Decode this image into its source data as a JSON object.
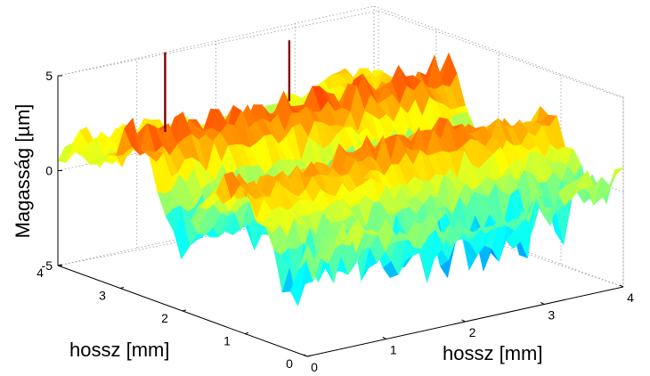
{
  "chart_data": {
    "type": "surface3d",
    "title": "",
    "xlabel": "hossz [mm]",
    "ylabel": "hossz [mm]",
    "zlabel": "Magasság [µm]",
    "xlim": [
      0,
      4
    ],
    "ylim": [
      0,
      4
    ],
    "zlim": [
      -5,
      5
    ],
    "x_ticks": [
      "0",
      "1",
      "2",
      "3",
      "4"
    ],
    "y_ticks": [
      "0",
      "1",
      "2",
      "3",
      "4"
    ],
    "z_ticks": [
      "5",
      "0",
      "-5"
    ],
    "colormap": "jet",
    "grid": true,
    "surface_description": {
      "base_level_um": 1.0,
      "ridges": [
        {
          "along": "x",
          "y_center_mm": 2.8,
          "height_um": 2.6,
          "peak_spacing_mm": 0.16
        },
        {
          "along": "x",
          "y_center_mm": 1.25,
          "height_um": 2.0,
          "peak_spacing_mm": 0.16
        }
      ],
      "valleys_min_um": -5,
      "spikes": [
        {
          "x_mm": 0.45,
          "y_mm": 2.85,
          "z_um": 7.2
        },
        {
          "x_mm": 2.1,
          "y_mm": 2.95,
          "z_um": 6.2
        }
      ]
    }
  }
}
